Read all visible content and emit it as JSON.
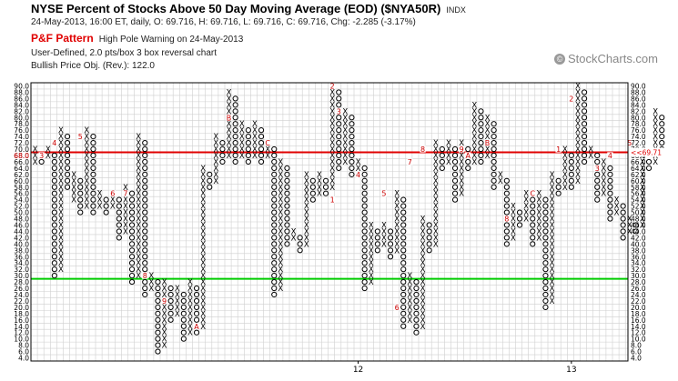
{
  "header": {
    "title": "NYSE Percent of Stocks Above 50 Day Moving Average (EOD) ($NYA50R)",
    "exchange": "INDX",
    "quote": "24-May-2013, 16:00 ET, daily, O: 69.716, H: 69.716, L: 69.716, C: 69.716, Chg: -2.285 (-3.17%)",
    "pattern_name": "P&F Pattern",
    "pattern_text": "High Pole Warning on 24-May-2013",
    "box_info": "User-Defined, 2.0 pts/box 3 box reversal chart",
    "price_objective": "Bullish Price Obj. (Rev.): 122.0",
    "brand": "© StockCharts.com",
    "brand_icon": "copyright-icon"
  },
  "chart_data": {
    "type": "point-and-figure",
    "box_size": 2.0,
    "reversal": 3,
    "ylim": [
      4,
      90
    ],
    "y_ticks": [
      "4.0",
      "6.0",
      "8.0",
      "10.0",
      "12.0",
      "14.0",
      "16.0",
      "18.0",
      "20.0",
      "22.0",
      "24.0",
      "26.0",
      "28.0",
      "30.0",
      "32.0",
      "34.0",
      "36.0",
      "38.0",
      "40.0",
      "42.0",
      "44.0",
      "46.0",
      "48.0",
      "50.0",
      "52.0",
      "54.0",
      "56.0",
      "58.0",
      "60.0",
      "62.0",
      "64.0",
      "66.0",
      "68.0",
      "70.0",
      "72.0",
      "74.0",
      "76.0",
      "78.0",
      "80.0",
      "82.0",
      "84.0",
      "86.0",
      "88.0",
      "90.0"
    ],
    "x_labels": [
      {
        "label": "12",
        "column": 50
      },
      {
        "label": "13",
        "column": 83
      }
    ],
    "columns": [
      {
        "t": "X",
        "from": 66,
        "to": 70
      },
      {
        "t": "O",
        "from": 66,
        "to": 68
      },
      {
        "t": "X",
        "from": 68,
        "to": 70
      },
      {
        "t": "O",
        "from": 30,
        "to": 68
      },
      {
        "t": "X",
        "from": 32,
        "to": 76
      },
      {
        "t": "O",
        "from": 58,
        "to": 74
      },
      {
        "t": "X",
        "from": 54,
        "to": 62
      },
      {
        "t": "O",
        "from": 50,
        "to": 60
      },
      {
        "t": "X",
        "from": 52,
        "to": 76
      },
      {
        "t": "O",
        "from": 50,
        "to": 74
      },
      {
        "t": "X",
        "from": 52,
        "to": 56
      },
      {
        "t": "O",
        "from": 50,
        "to": 54
      },
      {
        "t": "X",
        "from": 52,
        "to": 56
      },
      {
        "t": "O",
        "from": 42,
        "to": 54
      },
      {
        "t": "X",
        "from": 44,
        "to": 58
      },
      {
        "t": "O",
        "from": 28,
        "to": 56
      },
      {
        "t": "X",
        "from": 30,
        "to": 74
      },
      {
        "t": "O",
        "from": 24,
        "to": 72
      },
      {
        "t": "X",
        "from": 26,
        "to": 30
      },
      {
        "t": "O",
        "from": 6,
        "to": 28
      },
      {
        "t": "X",
        "from": 8,
        "to": 28
      },
      {
        "t": "O",
        "from": 16,
        "to": 26
      },
      {
        "t": "X",
        "from": 18,
        "to": 26
      },
      {
        "t": "O",
        "from": 10,
        "to": 24
      },
      {
        "t": "X",
        "from": 12,
        "to": 28
      },
      {
        "t": "O",
        "from": 12,
        "to": 26
      },
      {
        "t": "X",
        "from": 14,
        "to": 64
      },
      {
        "t": "O",
        "from": 58,
        "to": 62
      },
      {
        "t": "X",
        "from": 60,
        "to": 74
      },
      {
        "t": "O",
        "from": 66,
        "to": 72
      },
      {
        "t": "X",
        "from": 68,
        "to": 88
      },
      {
        "t": "O",
        "from": 66,
        "to": 86
      },
      {
        "t": "X",
        "from": 68,
        "to": 78
      },
      {
        "t": "O",
        "from": 66,
        "to": 76
      },
      {
        "t": "X",
        "from": 68,
        "to": 78
      },
      {
        "t": "O",
        "from": 66,
        "to": 76
      },
      {
        "t": "X",
        "from": 68,
        "to": 72
      },
      {
        "t": "O",
        "from": 24,
        "to": 70
      },
      {
        "t": "X",
        "from": 26,
        "to": 66
      },
      {
        "t": "O",
        "from": 40,
        "to": 64
      },
      {
        "t": "X",
        "from": 42,
        "to": 44
      },
      {
        "t": "O",
        "from": 38,
        "to": 42
      },
      {
        "t": "X",
        "from": 40,
        "to": 62
      },
      {
        "t": "O",
        "from": 54,
        "to": 60
      },
      {
        "t": "X",
        "from": 56,
        "to": 62
      },
      {
        "t": "O",
        "from": 56,
        "to": 60
      },
      {
        "t": "X",
        "from": 58,
        "to": 90
      },
      {
        "t": "O",
        "from": 64,
        "to": 88
      },
      {
        "t": "X",
        "from": 66,
        "to": 82
      },
      {
        "t": "O",
        "from": 62,
        "to": 80
      },
      {
        "t": "X",
        "from": 64,
        "to": 66
      },
      {
        "t": "O",
        "from": 26,
        "to": 64
      },
      {
        "t": "X",
        "from": 28,
        "to": 46
      },
      {
        "t": "O",
        "from": 38,
        "to": 44
      },
      {
        "t": "X",
        "from": 40,
        "to": 46
      },
      {
        "t": "O",
        "from": 36,
        "to": 44
      },
      {
        "t": "X",
        "from": 38,
        "to": 56
      },
      {
        "t": "O",
        "from": 14,
        "to": 54
      },
      {
        "t": "X",
        "from": 16,
        "to": 30
      },
      {
        "t": "O",
        "from": 12,
        "to": 28
      },
      {
        "t": "X",
        "from": 14,
        "to": 48
      },
      {
        "t": "O",
        "from": 38,
        "to": 46
      },
      {
        "t": "X",
        "from": 40,
        "to": 72
      },
      {
        "t": "O",
        "from": 64,
        "to": 70
      },
      {
        "t": "X",
        "from": 66,
        "to": 72
      },
      {
        "t": "O",
        "from": 54,
        "to": 70
      },
      {
        "t": "X",
        "from": 56,
        "to": 72
      },
      {
        "t": "O",
        "from": 64,
        "to": 70
      },
      {
        "t": "X",
        "from": 66,
        "to": 84
      },
      {
        "t": "O",
        "from": 66,
        "to": 82
      },
      {
        "t": "X",
        "from": 68,
        "to": 80
      },
      {
        "t": "O",
        "from": 58,
        "to": 78
      },
      {
        "t": "X",
        "from": 60,
        "to": 62
      },
      {
        "t": "O",
        "from": 40,
        "to": 60
      },
      {
        "t": "X",
        "from": 42,
        "to": 52
      },
      {
        "t": "O",
        "from": 46,
        "to": 50
      },
      {
        "t": "X",
        "from": 48,
        "to": 56
      },
      {
        "t": "O",
        "from": 40,
        "to": 54
      },
      {
        "t": "X",
        "from": 42,
        "to": 56
      },
      {
        "t": "O",
        "from": 20,
        "to": 54
      },
      {
        "t": "X",
        "from": 22,
        "to": 62
      },
      {
        "t": "O",
        "from": 56,
        "to": 60
      },
      {
        "t": "X",
        "from": 58,
        "to": 70
      },
      {
        "t": "O",
        "from": 58,
        "to": 68
      },
      {
        "t": "X",
        "from": 60,
        "to": 90
      },
      {
        "t": "O",
        "from": 66,
        "to": 88
      },
      {
        "t": "X",
        "from": 68,
        "to": 70
      },
      {
        "t": "O",
        "from": 54,
        "to": 68
      },
      {
        "t": "X",
        "from": 56,
        "to": 66
      },
      {
        "t": "O",
        "from": 48,
        "to": 64
      },
      {
        "t": "X",
        "from": 50,
        "to": 54
      },
      {
        "t": "O",
        "from": 42,
        "to": 52
      },
      {
        "t": "X",
        "from": 44,
        "to": 48
      },
      {
        "t": "O",
        "from": 44,
        "to": 46
      },
      {
        "t": "X",
        "from": 46,
        "to": 68
      },
      {
        "t": "O",
        "from": 64,
        "to": 66
      },
      {
        "t": "X",
        "from": 66,
        "to": 82
      },
      {
        "t": "O",
        "from": 70,
        "to": 80
      }
    ],
    "month_markers": [
      {
        "label": "3",
        "column": 1,
        "value": 68
      },
      {
        "label": "4",
        "column": 3,
        "value": 72
      },
      {
        "label": "5",
        "column": 7,
        "value": 74
      },
      {
        "label": "6",
        "column": 12,
        "value": 56
      },
      {
        "label": "7",
        "column": 14,
        "value": 56
      },
      {
        "label": "8",
        "column": 17,
        "value": 30
      },
      {
        "label": "9",
        "column": 20,
        "value": 22
      },
      {
        "label": "A",
        "column": 25,
        "value": 14
      },
      {
        "label": "B",
        "column": 30,
        "value": 80
      },
      {
        "label": "C",
        "column": 36,
        "value": 72
      },
      {
        "label": "2",
        "column": 46,
        "value": 90
      },
      {
        "label": "3",
        "column": 47,
        "value": 82
      },
      {
        "label": "1",
        "column": 46,
        "value": 54
      },
      {
        "label": "4",
        "column": 50,
        "value": 62
      },
      {
        "label": "5",
        "column": 54,
        "value": 56
      },
      {
        "label": "6",
        "column": 56,
        "value": 20
      },
      {
        "label": "7",
        "column": 58,
        "value": 66
      },
      {
        "label": "8",
        "column": 60,
        "value": 70
      },
      {
        "label": "9",
        "column": 66,
        "value": 70
      },
      {
        "label": "A",
        "column": 67,
        "value": 68
      },
      {
        "label": "B",
        "column": 70,
        "value": 72
      },
      {
        "label": "8",
        "column": 73,
        "value": 48
      },
      {
        "label": "C",
        "column": 77,
        "value": 56
      },
      {
        "label": "1",
        "column": 81,
        "value": 70
      },
      {
        "label": "2",
        "column": 83,
        "value": 86
      },
      {
        "label": "3",
        "column": 87,
        "value": 64
      },
      {
        "label": "4",
        "column": 89,
        "value": 68
      },
      {
        "label": "5",
        "column": 92,
        "value": 72
      }
    ],
    "current_value_label": "69.71",
    "reference_lines": [
      {
        "name": "overbought",
        "value": 70,
        "color": "#e00000"
      },
      {
        "name": "oversold",
        "value": 30,
        "color": "#00cc00"
      }
    ],
    "left_axis_red_label": "68.0",
    "colors": {
      "x": "#000000",
      "o": "#000000",
      "marker": "#cc0000",
      "grid": "#cfcfcf",
      "frame": "#000000"
    }
  }
}
